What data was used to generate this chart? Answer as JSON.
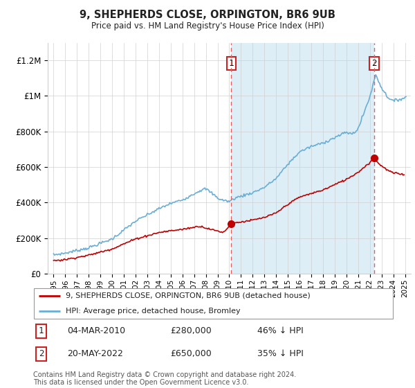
{
  "title": "9, SHEPHERDS CLOSE, ORPINGTON, BR6 9UB",
  "subtitle": "Price paid vs. HM Land Registry's House Price Index (HPI)",
  "legend_line1": "9, SHEPHERDS CLOSE, ORPINGTON, BR6 9UB (detached house)",
  "legend_line2": "HPI: Average price, detached house, Bromley",
  "sale1_date": "04-MAR-2010",
  "sale1_price": "£280,000",
  "sale1_hpi": "46% ↓ HPI",
  "sale1_year": 2010.17,
  "sale1_value": 280000,
  "sale2_date": "20-MAY-2022",
  "sale2_price": "£650,000",
  "sale2_hpi": "35% ↓ HPI",
  "sale2_year": 2022.38,
  "sale2_value": 650000,
  "footer": "Contains HM Land Registry data © Crown copyright and database right 2024.\nThis data is licensed under the Open Government Licence v3.0.",
  "hpi_color": "#6aaed6",
  "hpi_fill_color": "#ddeef7",
  "price_color": "#c00000",
  "dashed_color": "#e06060",
  "background_color": "#ffffff",
  "grid_color": "#d0d0d0",
  "ylim": [
    0,
    1300000
  ],
  "xlim_start": 1994.5,
  "xlim_end": 2025.5
}
